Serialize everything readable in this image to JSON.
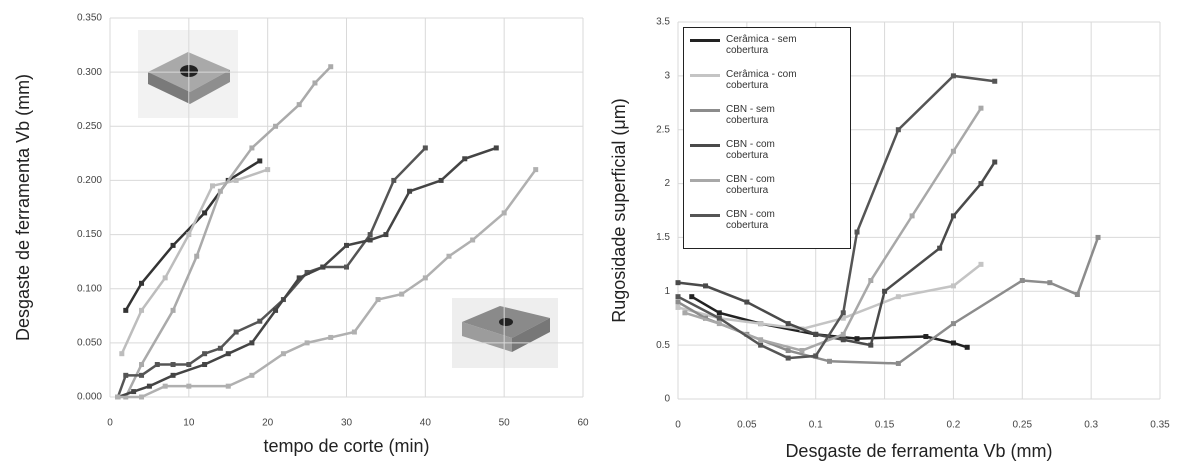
{
  "chart_data": [
    {
      "type": "line",
      "xlabel": "tempo de corte (min)",
      "ylabel": "Desgaste de ferramenta Vb (mm)",
      "xlim": [
        0,
        60
      ],
      "xticks": [
        0,
        10,
        20,
        30,
        40,
        50,
        60
      ],
      "ylim": [
        0,
        0.35
      ],
      "yticks": [
        {
          "value": 0,
          "label": "0.000"
        },
        {
          "value": 0.05,
          "label": "0.050"
        },
        {
          "value": 0.1,
          "label": "0.100"
        },
        {
          "value": 0.15,
          "label": "0.150"
        },
        {
          "value": 0.2,
          "label": "0.200"
        },
        {
          "value": 0.25,
          "label": "0.250"
        },
        {
          "value": 0.3,
          "label": "0.300"
        },
        {
          "value": 0.35,
          "label": "0.350"
        }
      ],
      "grid": true,
      "series": [
        {
          "color": "#333333",
          "x": [
            2,
            4,
            8,
            12,
            15,
            19
          ],
          "values": [
            0.08,
            0.105,
            0.14,
            0.17,
            0.2,
            0.218
          ]
        },
        {
          "color": "#bdbdbd",
          "x": [
            1.5,
            4,
            7,
            10,
            13,
            16,
            20
          ],
          "values": [
            0.04,
            0.08,
            0.11,
            0.15,
            0.195,
            0.2,
            0.21
          ]
        },
        {
          "color": "#aaaaaa",
          "x": [
            2,
            4,
            8,
            11,
            14,
            18,
            21,
            24,
            26,
            28
          ],
          "values": [
            0,
            0.03,
            0.08,
            0.13,
            0.19,
            0.23,
            0.25,
            0.27,
            0.29,
            0.305
          ]
        },
        {
          "color": "#555555",
          "x": [
            1,
            2,
            4,
            6,
            8,
            10,
            12,
            14,
            16,
            19,
            22,
            25,
            27,
            30,
            33,
            36,
            40
          ],
          "values": [
            0,
            0.02,
            0.02,
            0.03,
            0.03,
            0.03,
            0.04,
            0.045,
            0.06,
            0.07,
            0.09,
            0.115,
            0.12,
            0.12,
            0.15,
            0.2,
            0.23
          ]
        },
        {
          "color": "#444444",
          "x": [
            1,
            3,
            5,
            8,
            12,
            15,
            18,
            21,
            24,
            27,
            30,
            33,
            35,
            38,
            42,
            45,
            49
          ],
          "values": [
            0,
            0.005,
            0.01,
            0.02,
            0.03,
            0.04,
            0.05,
            0.08,
            0.11,
            0.12,
            0.14,
            0.145,
            0.15,
            0.19,
            0.2,
            0.22,
            0.23
          ]
        },
        {
          "color": "#b0b0b0",
          "x": [
            1,
            4,
            7,
            10,
            15,
            18,
            22,
            25,
            28,
            31,
            34,
            37,
            40,
            43,
            46,
            50,
            54
          ],
          "values": [
            0,
            0,
            0.01,
            0.01,
            0.01,
            0.02,
            0.04,
            0.05,
            0.055,
            0.06,
            0.09,
            0.095,
            0.11,
            0.13,
            0.145,
            0.17,
            0.21
          ]
        }
      ]
    },
    {
      "type": "line",
      "xlabel": "Desgaste de ferramenta Vb (mm)",
      "ylabel": "Rugosidade superficial (μm)",
      "xlim": [
        0,
        0.35
      ],
      "xticks": [
        0,
        0.05,
        0.1,
        0.15,
        0.2,
        0.25,
        0.3,
        0.35
      ],
      "ylim": [
        0,
        3.5
      ],
      "yticks": [
        0,
        0.5,
        1,
        1.5,
        2,
        2.5,
        3,
        3.5
      ],
      "grid": true,
      "legend": "upper left",
      "series": [
        {
          "name": "Cerâmica - sem cobertura",
          "color": "#222222",
          "x": [
            0.01,
            0.03,
            0.06,
            0.1,
            0.13,
            0.18,
            0.2,
            0.21
          ],
          "values": [
            0.95,
            0.8,
            0.7,
            0.6,
            0.56,
            0.58,
            0.52,
            0.48
          ]
        },
        {
          "name": "Cerâmica - com cobertura",
          "color": "#c4c4c4",
          "x": [
            0,
            0.03,
            0.06,
            0.09,
            0.12,
            0.16,
            0.2,
            0.22
          ],
          "values": [
            0.85,
            0.75,
            0.7,
            0.65,
            0.75,
            0.95,
            1.05,
            1.25
          ]
        },
        {
          "name": "CBN - sem cobertura",
          "color": "#8c8c8c",
          "x": [
            0,
            0.02,
            0.05,
            0.08,
            0.11,
            0.16,
            0.2,
            0.25,
            0.27,
            0.29,
            0.305
          ],
          "values": [
            0.9,
            0.75,
            0.6,
            0.45,
            0.35,
            0.33,
            0.7,
            1.1,
            1.08,
            0.97,
            1.5
          ]
        },
        {
          "name": "CBN - com cobertura",
          "color": "#4a4a4a",
          "x": [
            0,
            0.02,
            0.05,
            0.08,
            0.1,
            0.12,
            0.14,
            0.15,
            0.19,
            0.2,
            0.22,
            0.23
          ],
          "values": [
            1.08,
            1.05,
            0.9,
            0.7,
            0.6,
            0.55,
            0.5,
            1.0,
            1.4,
            1.7,
            2.0,
            2.2
          ]
        },
        {
          "name": "CBN - com cobertura",
          "color": "#a8a8a8",
          "x": [
            0.005,
            0.03,
            0.06,
            0.09,
            0.12,
            0.14,
            0.17,
            0.2,
            0.22
          ],
          "values": [
            0.8,
            0.7,
            0.55,
            0.45,
            0.6,
            1.1,
            1.7,
            2.3,
            2.7
          ]
        },
        {
          "name": "CBN - com cobertura",
          "color": "#555555",
          "x": [
            0,
            0.03,
            0.06,
            0.08,
            0.1,
            0.12,
            0.13,
            0.16,
            0.2,
            0.23
          ],
          "values": [
            0.95,
            0.75,
            0.5,
            0.38,
            0.4,
            0.8,
            1.55,
            2.5,
            3.0,
            2.95
          ]
        }
      ]
    }
  ]
}
